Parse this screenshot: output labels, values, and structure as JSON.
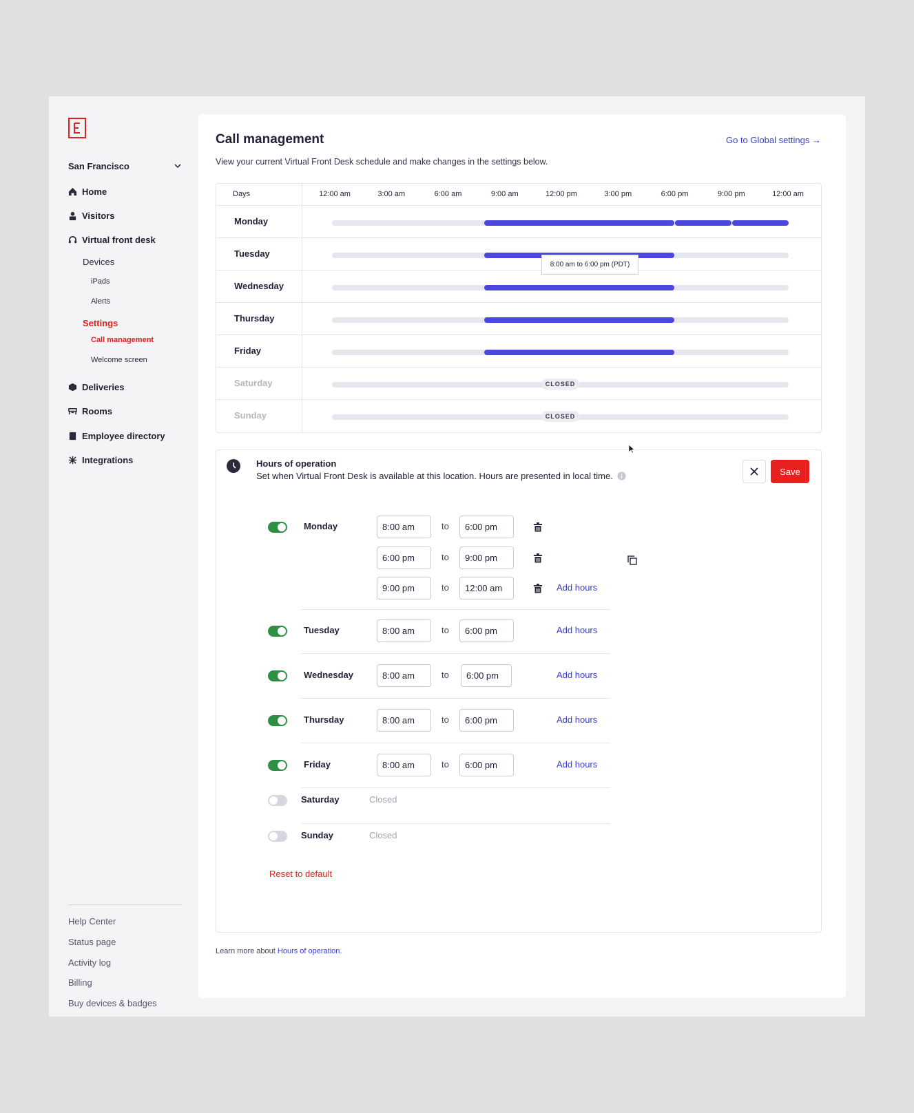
{
  "brand": {
    "logo_letter": "E",
    "accent": "#e0201e",
    "link": "#3a3ad6",
    "bar": "#4a47e0",
    "toggle_on": "#2f8f45"
  },
  "sidebar": {
    "location": "San Francisco",
    "nav": {
      "home": "Home",
      "visitors": "Visitors",
      "vfd": "Virtual front desk",
      "devices": "Devices",
      "ipads": "iPads",
      "alerts": "Alerts",
      "settings": "Settings",
      "call_management": "Call management",
      "welcome_screen": "Welcome screen",
      "deliveries": "Deliveries",
      "rooms": "Rooms",
      "employee_directory": "Employee directory",
      "integrations": "Integrations"
    },
    "footer": [
      "Help Center",
      "Status page",
      "Activity log",
      "Billing",
      "Buy devices & badges"
    ]
  },
  "main": {
    "title": "Call management",
    "global_link": "Go to Global settings →",
    "subtitle": "View your current Virtual Front Desk schedule and make changes in the settings below."
  },
  "schedule": {
    "days_label": "Days",
    "ticks": [
      "12:00 am",
      "3:00 am",
      "6:00 am",
      "9:00 am",
      "12:00 pm",
      "3:00 pm",
      "6:00 pm",
      "9:00 pm",
      "12:00 am"
    ],
    "rows": [
      {
        "day": "Monday",
        "segments": [
          [
            8,
            18
          ],
          [
            18,
            21
          ],
          [
            21,
            24
          ]
        ],
        "closed": false
      },
      {
        "day": "Tuesday",
        "segments": [
          [
            8,
            18
          ]
        ],
        "closed": false
      },
      {
        "day": "Wednesday",
        "segments": [
          [
            8,
            18
          ]
        ],
        "closed": false
      },
      {
        "day": "Thursday",
        "segments": [
          [
            8,
            18
          ]
        ],
        "closed": false
      },
      {
        "day": "Friday",
        "segments": [
          [
            8,
            18
          ]
        ],
        "closed": false
      },
      {
        "day": "Saturday",
        "segments": [],
        "closed": true
      },
      {
        "day": "Sunday",
        "segments": [],
        "closed": true
      }
    ],
    "closed_label": "CLOSED",
    "tooltip": "8:00 am to 6:00 pm (PDT)"
  },
  "hours": {
    "title": "Hours of operation",
    "description": "Set when Virtual Front Desk is available at this location. Hours are presented in local time.",
    "save": "Save",
    "to": "to",
    "add_hours": "Add hours",
    "closed": "Closed",
    "reset": "Reset to default",
    "days": {
      "monday": {
        "name": "Monday",
        "on": true,
        "ranges": [
          [
            "8:00 am",
            "6:00 pm"
          ],
          [
            "6:00 pm",
            "9:00 pm"
          ],
          [
            "9:00 pm",
            "12:00 am"
          ]
        ]
      },
      "tuesday": {
        "name": "Tuesday",
        "on": true,
        "ranges": [
          [
            "8:00 am",
            "6:00 pm"
          ]
        ]
      },
      "wednesday": {
        "name": "Wednesday",
        "on": true,
        "ranges": [
          [
            "8:00 am",
            "6:00 pm"
          ]
        ]
      },
      "thursday": {
        "name": "Thursday",
        "on": true,
        "ranges": [
          [
            "8:00 am",
            "6:00 pm"
          ]
        ]
      },
      "friday": {
        "name": "Friday",
        "on": true,
        "ranges": [
          [
            "8:00 am",
            "6:00 pm"
          ]
        ]
      },
      "saturday": {
        "name": "Saturday",
        "on": false
      },
      "sunday": {
        "name": "Sunday",
        "on": false
      }
    }
  },
  "learn": {
    "prefix": "Learn more about ",
    "link": "Hours of operation",
    "suffix": "."
  }
}
